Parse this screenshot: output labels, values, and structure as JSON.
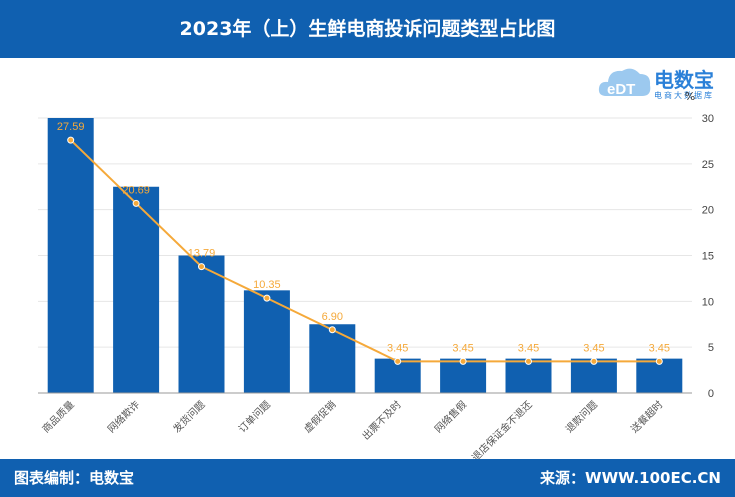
{
  "header": {
    "title": "2023年（上）生鲜电商投诉问题类型占比图"
  },
  "footer": {
    "left": "图表编制：电数宝",
    "right": "来源：WWW.100EC.CN"
  },
  "logo": {
    "word": "电数宝",
    "sub": "电商大数据库",
    "mark": "eDT"
  },
  "colors": {
    "bar": "#1060b0",
    "line": "#f5a93a",
    "label": "#f5a93a",
    "brand": "#1060b0"
  },
  "chart_data": {
    "type": "bar",
    "categories": [
      "商品质量",
      "网络欺诈",
      "发货问题",
      "订单问题",
      "虚假促销",
      "出票不及时",
      "网络售假",
      "退店保证金不退还",
      "退款问题",
      "送餐超时"
    ],
    "values": [
      27.59,
      20.69,
      13.79,
      10.35,
      6.9,
      3.45,
      3.45,
      3.45,
      3.45,
      3.45
    ],
    "bar_values": [
      30,
      22.5,
      15,
      11.2,
      7.5,
      3.75,
      3.75,
      3.75,
      3.75,
      3.75
    ],
    "value_labels": [
      "27.59",
      "20.69",
      "13.79",
      "10.35",
      "6.90",
      "3.45",
      "3.45",
      "3.45",
      "3.45",
      "3.45"
    ],
    "y_unit": "%",
    "ylim": [
      0,
      30
    ],
    "yticks": [
      "0",
      "5",
      "10",
      "15",
      "20",
      "25",
      "30"
    ],
    "y_axis_side": "right",
    "grid": true,
    "line_overlay": true
  }
}
